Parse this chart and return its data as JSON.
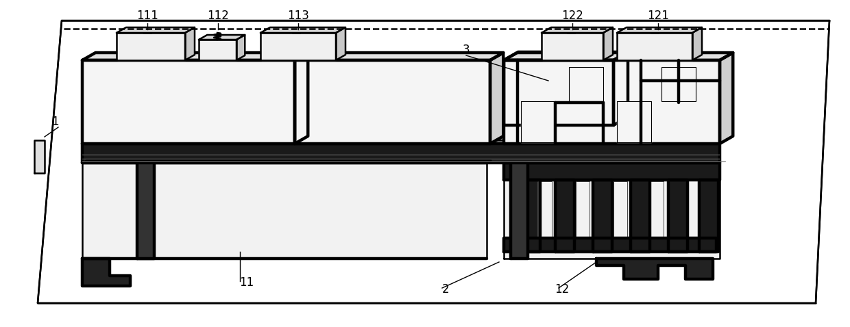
{
  "fig_width": 12.4,
  "fig_height": 4.78,
  "dpi": 100,
  "bg_color": "#ffffff",
  "line_color": "#000000",
  "lw_thin": 1.0,
  "lw_med": 1.8,
  "lw_thick": 3.2,
  "label_fontsize": 12
}
